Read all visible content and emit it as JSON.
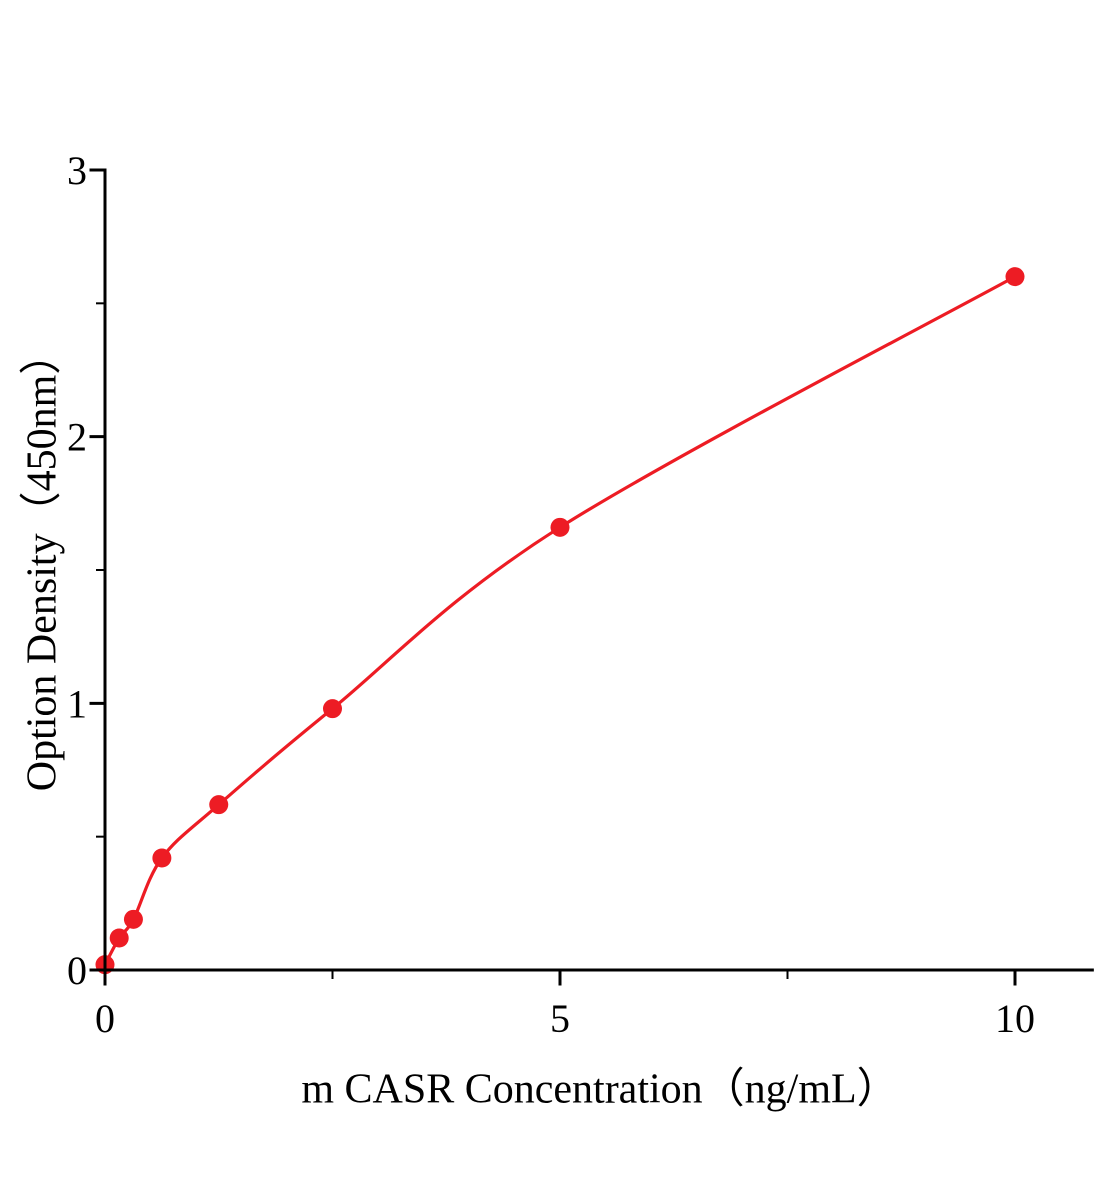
{
  "chart_data": {
    "type": "line",
    "title": "",
    "xlabel": "m CASR Concentration（ng/mL）",
    "ylabel": "Option Density（450nm）",
    "x": [
      0,
      0.156,
      0.3125,
      0.625,
      1.25,
      2.5,
      5,
      10
    ],
    "y": [
      0.02,
      0.12,
      0.19,
      0.42,
      0.62,
      0.98,
      1.66,
      2.6
    ],
    "xlim": [
      0,
      10.85
    ],
    "ylim": [
      0,
      3
    ],
    "x_major_ticks": [
      0,
      5,
      10
    ],
    "x_minor_ticks": [
      2.5,
      7.5
    ],
    "y_major_ticks": [
      0,
      1,
      2,
      3
    ],
    "y_minor_ticks": [
      0.5,
      1.5,
      2.5
    ],
    "grid": "off",
    "legend": "none",
    "line_color": "#ed1c24",
    "point_color": "#ed1c24",
    "axis_color": "#000000"
  }
}
